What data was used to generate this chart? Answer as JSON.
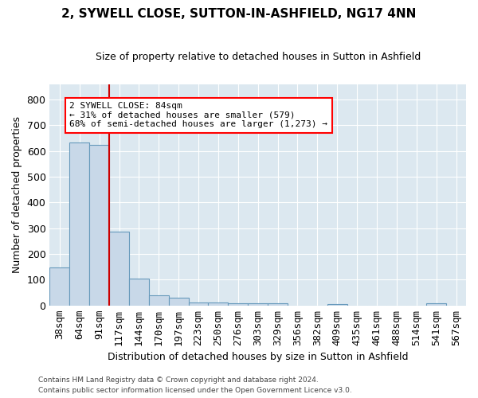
{
  "title": "2, SYWELL CLOSE, SUTTON-IN-ASHFIELD, NG17 4NN",
  "subtitle": "Size of property relative to detached houses in Sutton in Ashfield",
  "xlabel": "Distribution of detached houses by size in Sutton in Ashfield",
  "ylabel": "Number of detached properties",
  "categories": [
    "38sqm",
    "64sqm",
    "91sqm",
    "117sqm",
    "144sqm",
    "170sqm",
    "197sqm",
    "223sqm",
    "250sqm",
    "276sqm",
    "303sqm",
    "329sqm",
    "356sqm",
    "382sqm",
    "409sqm",
    "435sqm",
    "461sqm",
    "488sqm",
    "514sqm",
    "541sqm",
    "567sqm"
  ],
  "values": [
    148,
    634,
    625,
    287,
    103,
    41,
    29,
    12,
    12,
    10,
    10,
    9,
    0,
    0,
    7,
    0,
    0,
    0,
    0,
    8,
    0
  ],
  "bar_color": "#c8d8e8",
  "bar_edge_color": "#6699bb",
  "bar_linewidth": 0.8,
  "annotation_box_text": "2 SYWELL CLOSE: 84sqm\n← 31% of detached houses are smaller (579)\n68% of semi-detached houses are larger (1,273) →",
  "vline_color": "#cc0000",
  "vline_x": 2.5,
  "background_color": "#dce8f0",
  "grid_color": "#ffffff",
  "footer_line1": "Contains HM Land Registry data © Crown copyright and database right 2024.",
  "footer_line2": "Contains public sector information licensed under the Open Government Licence v3.0.",
  "ylim": [
    0,
    860
  ],
  "yticks": [
    0,
    100,
    200,
    300,
    400,
    500,
    600,
    700,
    800
  ]
}
